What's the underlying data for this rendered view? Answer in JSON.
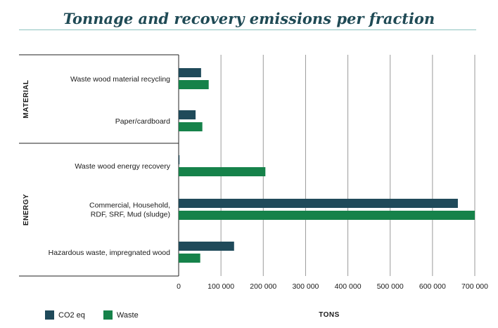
{
  "chart_data": {
    "type": "bar",
    "orientation": "horizontal",
    "title": "Tonnage and recovery emissions per fraction",
    "xlabel": "TONS",
    "xlim": [
      0,
      700000
    ],
    "xticks": [
      0,
      100000,
      200000,
      300000,
      400000,
      500000,
      600000,
      700000
    ],
    "xtick_labels": [
      "0",
      "100 000",
      "200 000",
      "300 000",
      "400 000",
      "500 000",
      "600 000",
      "700 000"
    ],
    "grid": "vertical",
    "legend_position": "bottom-left",
    "groups": [
      {
        "name": "MATERIAL",
        "categories": [
          0,
          1
        ]
      },
      {
        "name": "ENERGY",
        "categories": [
          2,
          3,
          4
        ]
      }
    ],
    "categories": [
      [
        "Waste wood material recycling"
      ],
      [
        "Paper/cardboard"
      ],
      [
        "Waste wood energy recovery"
      ],
      [
        "Commercial, Household,",
        "RDF, SRF, Mud (sludge)"
      ],
      [
        "Hazardous waste, impregnated wood"
      ]
    ],
    "series": [
      {
        "name": "CO2 eq",
        "color": "#1f4a5a",
        "values": [
          53000,
          40000,
          2000,
          660000,
          131000
        ]
      },
      {
        "name": "Waste",
        "color": "#16824a",
        "values": [
          71000,
          56000,
          205000,
          700000,
          51000
        ]
      }
    ]
  }
}
